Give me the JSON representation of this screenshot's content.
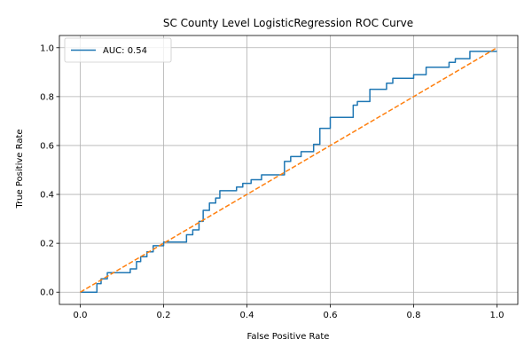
{
  "chart_data": {
    "type": "line",
    "title": "SC County Level LogisticRegression ROC Curve",
    "xlabel": "False Positive Rate",
    "ylabel": "True Positive Rate",
    "xlim": [
      -0.05,
      1.05
    ],
    "ylim": [
      -0.05,
      1.05
    ],
    "xticks": [
      0.0,
      0.2,
      0.4,
      0.6,
      0.8,
      1.0
    ],
    "yticks": [
      0.0,
      0.2,
      0.4,
      0.6,
      0.8,
      1.0
    ],
    "xtick_labels": [
      "0.0",
      "0.2",
      "0.4",
      "0.6",
      "0.8",
      "1.0"
    ],
    "ytick_labels": [
      "0.0",
      "0.2",
      "0.4",
      "0.6",
      "0.8",
      "1.0"
    ],
    "grid": true,
    "legend_position": "top-left",
    "series": [
      {
        "name": "AUC: 0.54",
        "color": "#1f77b4",
        "style": "solid",
        "x": [
          0.0,
          0.04,
          0.04,
          0.05,
          0.05,
          0.065,
          0.065,
          0.12,
          0.12,
          0.135,
          0.135,
          0.145,
          0.145,
          0.16,
          0.16,
          0.175,
          0.175,
          0.2,
          0.2,
          0.255,
          0.255,
          0.27,
          0.27,
          0.285,
          0.285,
          0.295,
          0.295,
          0.31,
          0.31,
          0.325,
          0.325,
          0.335,
          0.335,
          0.375,
          0.375,
          0.39,
          0.39,
          0.41,
          0.41,
          0.435,
          0.435,
          0.49,
          0.49,
          0.505,
          0.505,
          0.53,
          0.53,
          0.56,
          0.56,
          0.575,
          0.575,
          0.6,
          0.6,
          0.655,
          0.655,
          0.665,
          0.665,
          0.695,
          0.695,
          0.735,
          0.735,
          0.75,
          0.75,
          0.8,
          0.8,
          0.83,
          0.83,
          0.885,
          0.885,
          0.9,
          0.9,
          0.935,
          0.935,
          1.0
        ],
        "y": [
          0.0,
          0.0,
          0.035,
          0.035,
          0.055,
          0.055,
          0.08,
          0.08,
          0.095,
          0.095,
          0.125,
          0.125,
          0.145,
          0.145,
          0.165,
          0.165,
          0.19,
          0.19,
          0.205,
          0.205,
          0.235,
          0.235,
          0.255,
          0.255,
          0.29,
          0.29,
          0.335,
          0.335,
          0.365,
          0.365,
          0.385,
          0.385,
          0.415,
          0.415,
          0.43,
          0.43,
          0.445,
          0.445,
          0.46,
          0.46,
          0.48,
          0.48,
          0.535,
          0.535,
          0.555,
          0.555,
          0.575,
          0.575,
          0.605,
          0.605,
          0.67,
          0.67,
          0.715,
          0.715,
          0.765,
          0.765,
          0.78,
          0.78,
          0.83,
          0.83,
          0.855,
          0.855,
          0.875,
          0.875,
          0.89,
          0.89,
          0.92,
          0.92,
          0.94,
          0.94,
          0.955,
          0.955,
          0.985,
          0.985
        ]
      },
      {
        "name": "",
        "color": "#ff7f0e",
        "style": "dashed",
        "x": [
          0.0,
          1.0
        ],
        "y": [
          0.0,
          1.0
        ]
      }
    ]
  }
}
